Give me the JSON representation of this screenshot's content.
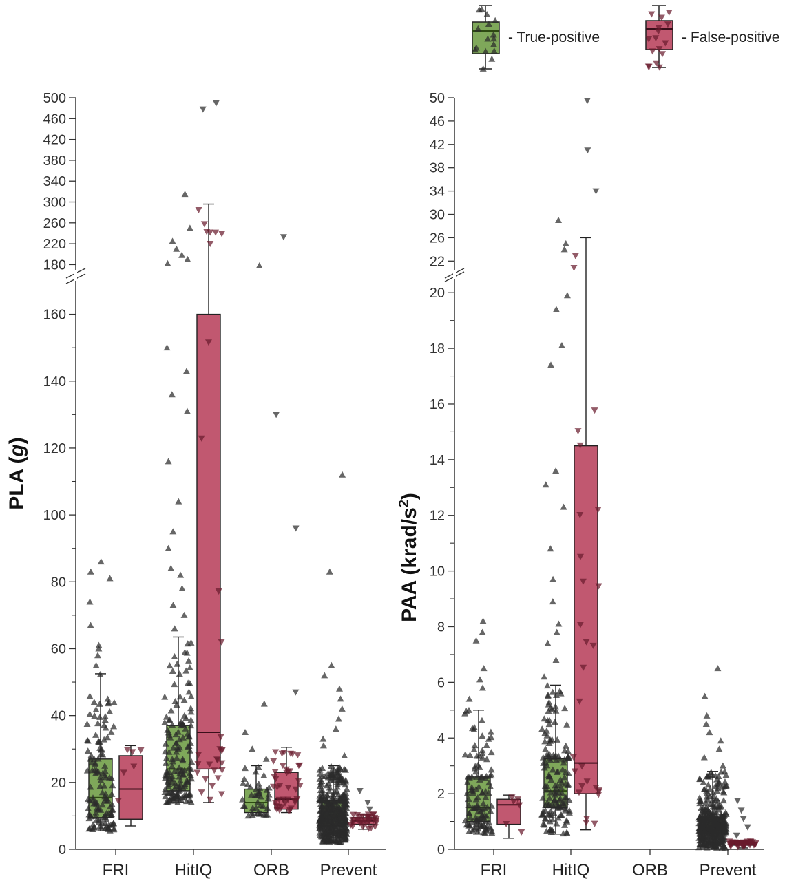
{
  "legend": {
    "true_positive": "- True-positive",
    "false_positive": "- False-positive"
  },
  "colors": {
    "true_positive_fill": "#7fa85a",
    "true_positive_median": "#2d4a12",
    "false_positive_fill": "#c15870",
    "false_positive_median": "#3a0f1a",
    "point": "#2b2b2b",
    "axis": "#333333"
  },
  "chart_data": [
    {
      "type": "box",
      "ylabel": "PLA (g)",
      "ylabel_main": "PLA (",
      "ylabel_unit": "g",
      "ylabel_close": ")",
      "y_axis_break": true,
      "lower_range": [
        0,
        170
      ],
      "upper_range": [
        170,
        500
      ],
      "lower_ticks": [
        0,
        20,
        40,
        60,
        80,
        100,
        120,
        140,
        160
      ],
      "upper_ticks": [
        180,
        220,
        260,
        300,
        340,
        380,
        420,
        460,
        500
      ],
      "categories": [
        "FRI",
        "HitIQ",
        "ORB",
        "Prevent"
      ],
      "series": [
        {
          "name": "True-positive",
          "boxes": [
            {
              "category": "FRI",
              "whisker_low": 5.5,
              "q1": 9.5,
              "median": 15.5,
              "q3": 27,
              "whisker_high": 52.5,
              "n_points": 130,
              "outliers": [
                55,
                58,
                60,
                61,
                67,
                74,
                81,
                83,
                86
              ]
            },
            {
              "category": "HitIQ",
              "whisker_low": 14,
              "q1": 17.5,
              "median": 24,
              "q3": 37,
              "whisker_high": 63.5,
              "n_points": 160,
              "outliers": [
                66,
                70,
                73,
                78,
                82,
                84,
                90,
                95,
                104,
                116,
                131,
                136,
                143,
                150,
                182,
                190,
                198,
                210,
                225,
                250,
                315
              ]
            },
            {
              "category": "ORB",
              "whisker_low": 10,
              "q1": 11,
              "median": 14,
              "q3": 18,
              "whisker_high": 25,
              "n_points": 40,
              "outliers": [
                27,
                30,
                35,
                43.5,
                178
              ]
            },
            {
              "category": "Prevent",
              "whisker_low": 2,
              "q1": 7,
              "median": 10,
              "q3": 14.5,
              "whisker_high": 25,
              "n_points": 420,
              "outliers": [
                28,
                31,
                33,
                36,
                39,
                42,
                45,
                48,
                52,
                55,
                83,
                112
              ]
            }
          ]
        },
        {
          "name": "False-positive",
          "boxes": [
            {
              "category": "FRI",
              "whisker_low": 7,
              "q1": 9,
              "median": 18,
              "q3": 28,
              "whisker_high": 31,
              "n_points": 6,
              "outliers": []
            },
            {
              "category": "HitIQ",
              "whisker_low": 14,
              "q1": 24,
              "median": 35,
              "q3": 160,
              "whisker_high": 296,
              "n_points": 30,
              "outliers": [
                478,
                490
              ]
            },
            {
              "category": "ORB",
              "whisker_low": 11,
              "q1": 12,
              "median": 15,
              "q3": 23,
              "whisker_high": 30.5,
              "n_points": 40,
              "outliers": [
                47,
                96,
                130,
                233
              ]
            },
            {
              "category": "Prevent",
              "whisker_low": 6,
              "q1": 7.5,
              "median": 8.5,
              "q3": 9.5,
              "whisker_high": 10.5,
              "n_points": 35,
              "outliers": [
                12,
                14,
                17.5
              ]
            }
          ]
        }
      ]
    },
    {
      "type": "box",
      "ylabel": "PAA (krad/s2)",
      "ylabel_main": "PAA (krad/s",
      "ylabel_sup": "2",
      "ylabel_close": ")",
      "y_axis_break": true,
      "lower_range": [
        0,
        20.5
      ],
      "upper_range": [
        20.5,
        50
      ],
      "lower_ticks": [
        0,
        2,
        4,
        6,
        8,
        10,
        12,
        14,
        16,
        18,
        20
      ],
      "upper_ticks": [
        22,
        26,
        30,
        34,
        38,
        42,
        46,
        50
      ],
      "categories": [
        "FRI",
        "HitIQ",
        "ORB",
        "Prevent"
      ],
      "series": [
        {
          "name": "True-positive",
          "boxes": [
            {
              "category": "FRI",
              "whisker_low": 0.55,
              "q1": 1.0,
              "median": 1.5,
              "q3": 2.6,
              "whisker_high": 5.0,
              "n_points": 120,
              "outliers": [
                5.4,
                5.8,
                6.1,
                6.5,
                7.5,
                7.8,
                8.2
              ]
            },
            {
              "category": "HitIQ",
              "whisker_low": 0.55,
              "q1": 1.5,
              "median": 2.1,
              "q3": 3.25,
              "whisker_high": 5.9,
              "n_points": 150,
              "outliers": [
                6.2,
                6.8,
                7.4,
                7.8,
                8.1,
                8.9,
                9.7,
                10.8,
                12.3,
                13.1,
                13.6,
                17.4,
                18.1,
                19.4,
                19.9,
                24,
                25,
                29
              ]
            },
            {
              "category": "Prevent",
              "whisker_low": 0.05,
              "q1": 0.6,
              "median": 0.8,
              "q3": 1.15,
              "whisker_high": 2.8,
              "n_points": 420,
              "outliers": [
                3.0,
                3.3,
                3.6,
                3.9,
                4.2,
                4.5,
                4.8,
                5.5,
                6.5
              ]
            }
          ]
        },
        {
          "name": "False-positive",
          "boxes": [
            {
              "category": "FRI",
              "whisker_low": 0.4,
              "q1": 0.9,
              "median": 1.6,
              "q3": 1.8,
              "whisker_high": 1.95,
              "n_points": 6,
              "outliers": []
            },
            {
              "category": "HitIQ",
              "whisker_low": 0.7,
              "q1": 2.0,
              "median": 3.1,
              "q3": 14.5,
              "whisker_high": 26,
              "n_points": 28,
              "outliers": [
                34,
                41,
                49.5
              ]
            },
            {
              "category": "Prevent",
              "whisker_low": 0.05,
              "q1": 0.15,
              "median": 0.2,
              "q3": 0.25,
              "whisker_high": 0.3,
              "n_points": 40,
              "outliers": [
                0.5,
                0.8,
                1.1,
                1.4,
                1.75
              ]
            }
          ]
        }
      ]
    }
  ]
}
